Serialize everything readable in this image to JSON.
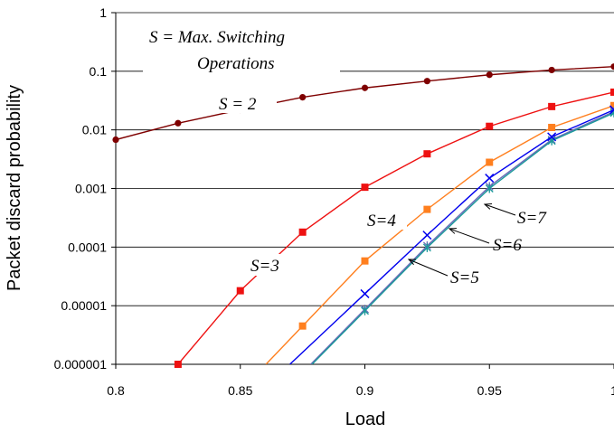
{
  "chart_data": {
    "type": "line",
    "xlabel": "Load",
    "ylabel": "Packet discard probability",
    "x_scale": "linear",
    "y_scale": "log",
    "xlim": [
      0.8,
      1.0
    ],
    "ylim": [
      1e-06,
      1
    ],
    "x_ticks": [
      "0.8",
      "0.85",
      "0.9",
      "0.95",
      "1"
    ],
    "y_ticks": [
      "0.000001",
      "0.00001",
      "0.0001",
      "0.001",
      "0.01",
      "0.1",
      "1"
    ],
    "y_tick_values": [
      1e-06,
      1e-05,
      0.0001,
      0.001,
      0.01,
      0.1,
      1
    ],
    "grid": "horizontal major gridlines",
    "legend": "none (series labelled with callouts)",
    "note": "S = Max. Switching Operations",
    "note_line1": "S = Max. Switching",
    "note_line2": "Operations",
    "series": [
      {
        "name": "S = 2",
        "color": "#7f0000",
        "marker": "circle",
        "x": [
          0.8,
          0.825,
          0.85,
          0.875,
          0.9,
          0.925,
          0.95,
          0.975,
          1.0
        ],
        "y": [
          0.0068,
          0.013,
          0.022,
          0.036,
          0.052,
          0.068,
          0.087,
          0.105,
          0.12
        ]
      },
      {
        "name": "S=3",
        "color": "#ee1111",
        "marker": "square",
        "x": [
          0.825,
          0.85,
          0.875,
          0.9,
          0.925,
          0.95,
          0.975,
          1.0
        ],
        "y": [
          1e-06,
          1.8e-05,
          0.00018,
          0.00105,
          0.0039,
          0.0115,
          0.025,
          0.044
        ]
      },
      {
        "name": "S=4",
        "color": "#ff7f1e",
        "marker": "square",
        "x": [
          0.875,
          0.9,
          0.925,
          0.95,
          0.975,
          1.0
        ],
        "y": [
          4.5e-06,
          5.8e-05,
          0.00044,
          0.0028,
          0.011,
          0.026
        ]
      },
      {
        "name": "S=5",
        "color": "#6b6bb8",
        "marker": "asterisk",
        "x": [
          0.9,
          0.925,
          0.95,
          0.975,
          1.0
        ],
        "y": [
          8.7e-06,
          0.000105,
          0.00108,
          0.0068,
          0.0205
        ]
      },
      {
        "name": "S=6",
        "color": "#1a9a9a",
        "marker": "asterisk",
        "x": [
          0.9,
          0.925,
          0.95,
          0.975,
          1.0
        ],
        "y": [
          8.2e-06,
          9.8e-05,
          0.001,
          0.0065,
          0.0195
        ]
      },
      {
        "name": "S=7",
        "color": "#0000ee",
        "marker": "x",
        "x": [
          0.9,
          0.925,
          0.95,
          0.975,
          1.0
        ],
        "y": [
          1.6e-05,
          0.00016,
          0.0015,
          0.0076,
          0.022
        ]
      }
    ],
    "annotations": [
      "S = 2",
      "S=3",
      "S=4",
      "S=5",
      "S=6",
      "S=7"
    ]
  }
}
